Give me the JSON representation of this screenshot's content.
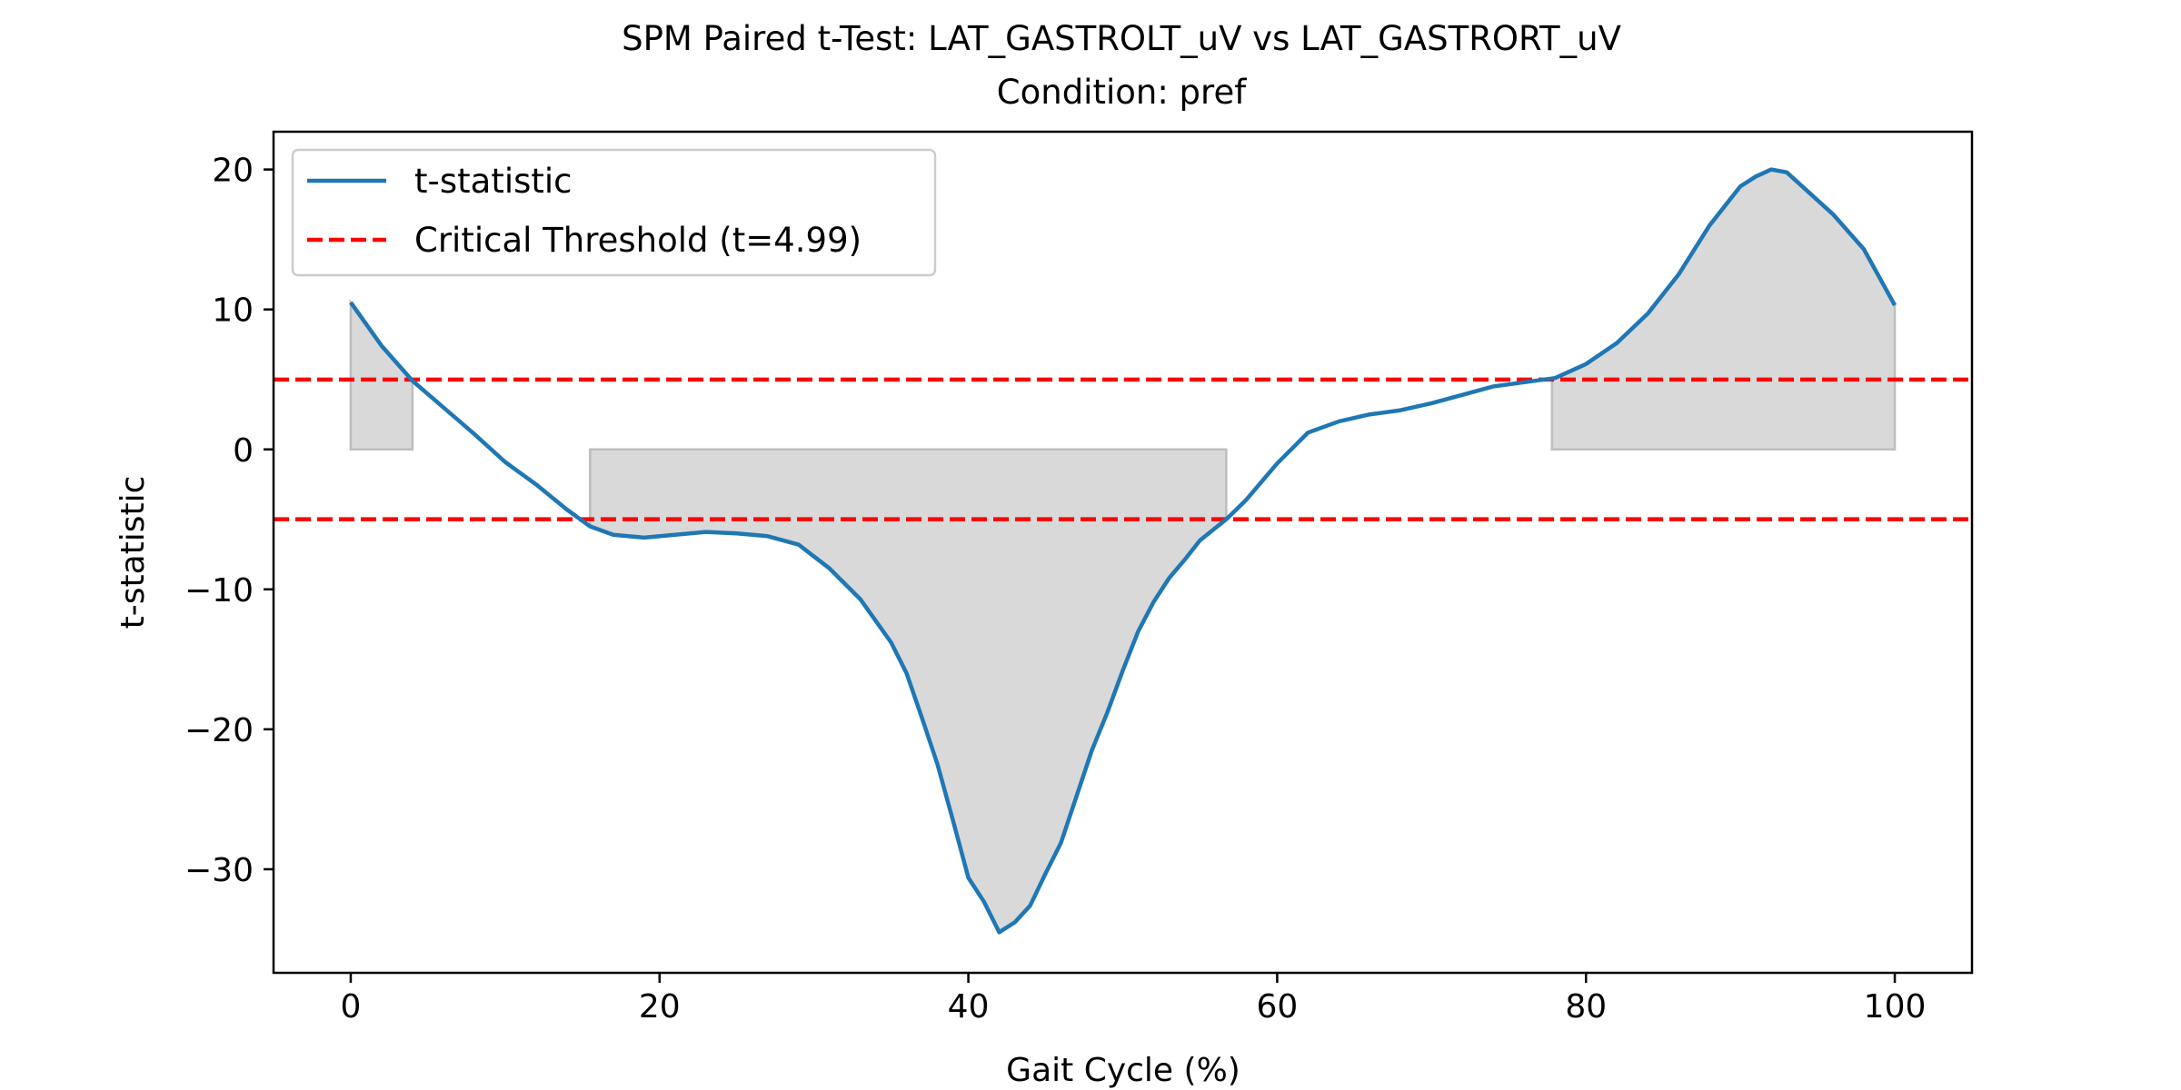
{
  "chart_data": {
    "type": "line",
    "title": "SPM Paired t-Test: LAT_GASTROLT_uV vs LAT_GASTRORT_uV",
    "subtitle": "Condition: pref",
    "xlabel": "Gait Cycle (%)",
    "ylabel": "t-statistic",
    "xlim": [
      -5,
      105
    ],
    "ylim": [
      -37.4,
      22.7
    ],
    "xticks": [
      0,
      20,
      40,
      60,
      80,
      100
    ],
    "yticks": [
      -30,
      -20,
      -10,
      0,
      10,
      20
    ],
    "ytick_labels": [
      "−30",
      "−20",
      "−10",
      "0",
      "10",
      "20"
    ],
    "grid": false,
    "legend_position": "top-left",
    "series": [
      {
        "name": "t-statistic",
        "color": "#1f77b4",
        "x": [
          0,
          2,
          4,
          6,
          8,
          10,
          12,
          14,
          15.5,
          17,
          19,
          21,
          23,
          25,
          27,
          29,
          31,
          33,
          35,
          36,
          37,
          38,
          39,
          40,
          41,
          42,
          43,
          44,
          45,
          46,
          47,
          48,
          49,
          50,
          51,
          52,
          53,
          54,
          55,
          56.7,
          58,
          60,
          62,
          64,
          66,
          68,
          70,
          72,
          74,
          76,
          78,
          80,
          82,
          84,
          86,
          88,
          90,
          91,
          92,
          93,
          94,
          96,
          98,
          100
        ],
        "values": [
          10.5,
          7.4,
          4.9,
          3.0,
          1.1,
          -0.9,
          -2.5,
          -4.3,
          -5.5,
          -6.1,
          -6.3,
          -6.1,
          -5.9,
          -6.0,
          -6.2,
          -6.8,
          -8.5,
          -10.7,
          -13.8,
          -16.0,
          -19.2,
          -22.5,
          -26.5,
          -30.6,
          -32.3,
          -34.5,
          -33.8,
          -32.6,
          -30.3,
          -28.1,
          -24.8,
          -21.5,
          -18.8,
          -15.8,
          -13.0,
          -10.9,
          -9.2,
          -7.9,
          -6.5,
          -5.0,
          -3.6,
          -1.0,
          1.2,
          2.0,
          2.5,
          2.8,
          3.3,
          3.9,
          4.5,
          4.8,
          5.1,
          6.1,
          7.6,
          9.7,
          12.5,
          16.0,
          18.8,
          19.5,
          20.0,
          19.8,
          18.8,
          16.8,
          14.3,
          10.3
        ]
      },
      {
        "name": "Critical Threshold (t=4.99)",
        "color": "#ff0000",
        "style": "dashed",
        "values": [
          4.99,
          -4.99
        ]
      }
    ],
    "shaded_regions": [
      {
        "x_start": 0,
        "x_end": 4.0,
        "sign": "positive"
      },
      {
        "x_start": 15.5,
        "x_end": 56.7,
        "sign": "negative"
      },
      {
        "x_start": 77.8,
        "x_end": 100,
        "sign": "positive"
      }
    ],
    "shade_color": "#d9d9d9"
  }
}
